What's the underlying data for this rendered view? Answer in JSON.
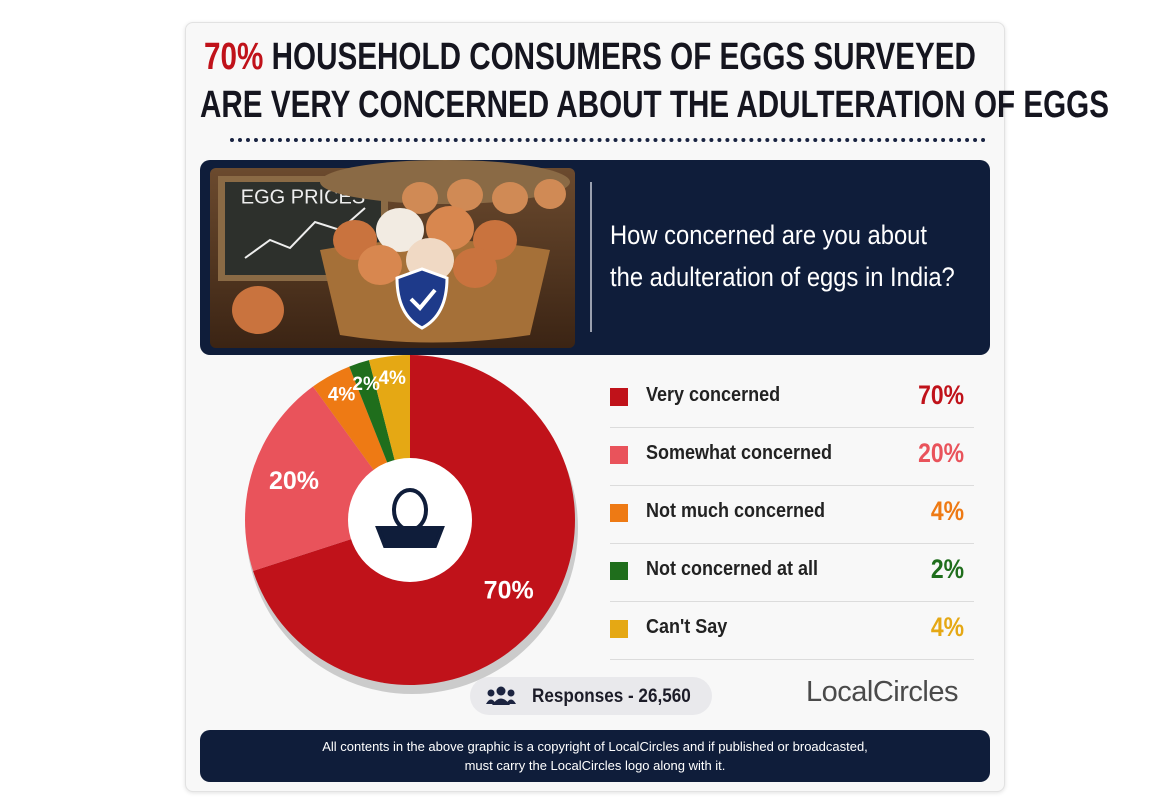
{
  "chart_data": {
    "type": "pie",
    "title_highlight": "70%",
    "title_lines": [
      "HOUSEHOLD CONSUMERS OF EGGS SURVEYED",
      "ARE VERY CONCERNED ABOUT THE ADULTERATION OF EGGS"
    ],
    "image_text": "EGG PRICES",
    "question": "How concerned are you about the adulteration of eggs in India?",
    "categories": [
      "Very concerned",
      "Somewhat concerned",
      "Not much concerned",
      "Not concerned at all",
      "Can't Say"
    ],
    "values": [
      70,
      20,
      4,
      2,
      4
    ],
    "value_labels": [
      "70%",
      "20%",
      "4%",
      "2%",
      "4%"
    ],
    "colors": [
      "#c0121a",
      "#e9535b",
      "#ee7a14",
      "#1f6e1c",
      "#e5a814"
    ],
    "responses": "Responses - 26,560",
    "logo": "LocalCircles",
    "footer_lines": [
      "All contents in the above graphic is a copyright of LocalCircles and if published or broadcasted,",
      "must carry the LocalCircles logo along with it."
    ]
  }
}
